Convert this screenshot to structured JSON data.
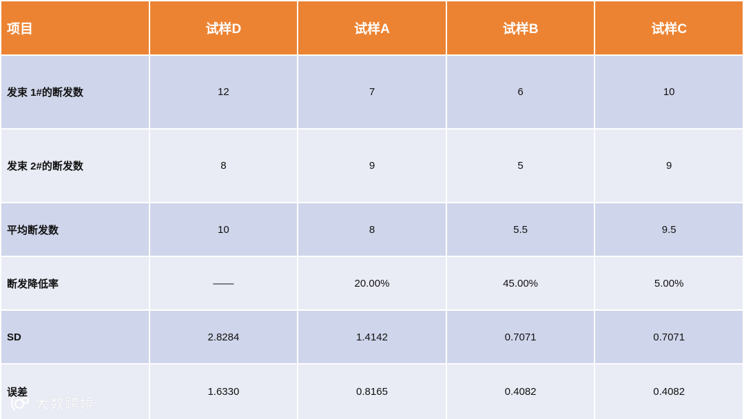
{
  "table": {
    "headers": [
      "项目",
      "试样D",
      "试样A",
      "试样B",
      "试样C"
    ],
    "rows": [
      {
        "label": "发束 1#的断发数",
        "values": [
          "12",
          "7",
          "6",
          "10"
        ]
      },
      {
        "label": "发束 2#的断发数",
        "values": [
          "8",
          "9",
          "5",
          "9"
        ]
      },
      {
        "label": "平均断发数",
        "values": [
          "10",
          "8",
          "5.5",
          "9.5"
        ]
      },
      {
        "label": "断发降低率",
        "values": [
          "——",
          "20.00%",
          "45.00%",
          "5.00%"
        ]
      },
      {
        "label": "SD",
        "values": [
          "2.8284",
          "1.4142",
          "0.7071",
          "0.7071"
        ]
      },
      {
        "label": "误差",
        "values": [
          "1.6330",
          "0.8165",
          "0.4082",
          "0.4082"
        ]
      }
    ]
  },
  "watermark": {
    "text": "大数跨境",
    "icon": "brand-logo-icon"
  },
  "colors": {
    "header_bg": "#ec8332",
    "row_odd_bg": "#cfd5ea",
    "row_even_bg": "#e9ebf5"
  }
}
